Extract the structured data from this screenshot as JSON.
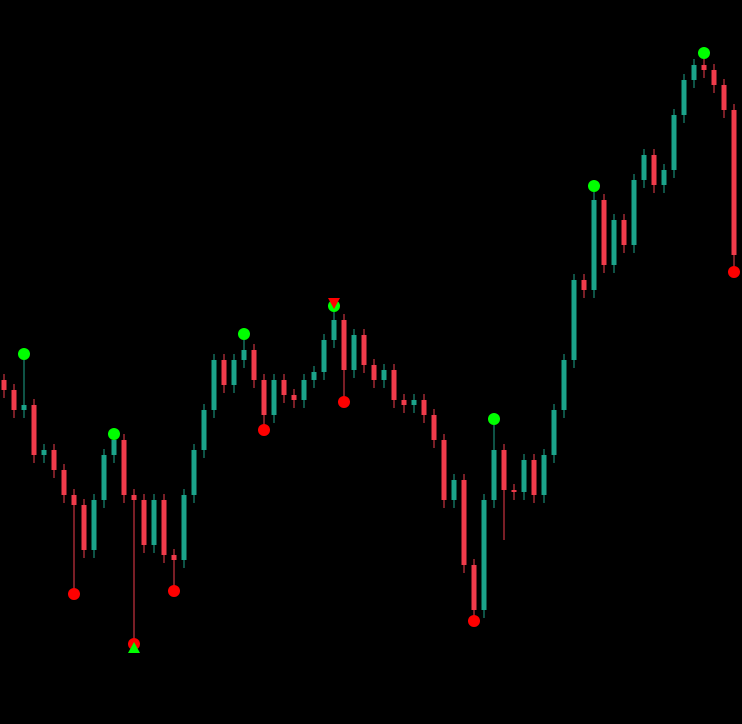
{
  "chart_data": {
    "type": "candlestick",
    "ylim": [
      0,
      724
    ],
    "up_color": "#1ba38a",
    "down_color": "#ef3b4b",
    "open": [
      344,
      334,
      314,
      319,
      269,
      274,
      254,
      229,
      219,
      174,
      224,
      269,
      284,
      229,
      224,
      179,
      224,
      169,
      164,
      229,
      274,
      314,
      364,
      339,
      364,
      374,
      344,
      309,
      344,
      329,
      324,
      344,
      352,
      384,
      404,
      354,
      389,
      359,
      344,
      354,
      324,
      319,
      324,
      309,
      284,
      224,
      244,
      159,
      114,
      224,
      274,
      234,
      232,
      264,
      229,
      269,
      314,
      364,
      444,
      434,
      524,
      459,
      504,
      479,
      544,
      569,
      539,
      554,
      609,
      644,
      659,
      654,
      639,
      614
    ],
    "high": [
      350,
      340,
      370,
      325,
      280,
      280,
      260,
      235,
      225,
      230,
      275,
      290,
      290,
      235,
      230,
      230,
      230,
      175,
      235,
      280,
      320,
      370,
      370,
      370,
      390,
      380,
      350,
      350,
      350,
      335,
      350,
      358,
      390,
      418,
      410,
      395,
      395,
      365,
      360,
      360,
      330,
      330,
      330,
      315,
      290,
      250,
      250,
      165,
      230,
      305,
      280,
      240,
      270,
      270,
      275,
      320,
      370,
      450,
      450,
      538,
      530,
      510,
      510,
      550,
      575,
      575,
      560,
      615,
      650,
      665,
      671,
      660,
      645,
      620
    ],
    "low": [
      326,
      306,
      306,
      261,
      261,
      246,
      221,
      130,
      166,
      166,
      216,
      261,
      221,
      80,
      171,
      171,
      161,
      133,
      156,
      221,
      266,
      306,
      331,
      331,
      356,
      336,
      294,
      301,
      321,
      316,
      316,
      336,
      344,
      376,
      322,
      346,
      351,
      336,
      336,
      316,
      311,
      311,
      301,
      276,
      216,
      216,
      151,
      103,
      106,
      216,
      184,
      224,
      224,
      221,
      221,
      261,
      306,
      356,
      426,
      426,
      451,
      451,
      471,
      471,
      536,
      531,
      531,
      546,
      601,
      636,
      646,
      631,
      606,
      452
    ],
    "close": [
      334,
      314,
      319,
      269,
      274,
      254,
      229,
      219,
      174,
      224,
      269,
      284,
      229,
      224,
      179,
      224,
      169,
      164,
      229,
      274,
      314,
      364,
      339,
      364,
      374,
      344,
      309,
      344,
      329,
      324,
      344,
      352,
      384,
      404,
      354,
      389,
      359,
      344,
      354,
      324,
      319,
      324,
      309,
      284,
      224,
      244,
      159,
      114,
      224,
      274,
      234,
      232,
      264,
      229,
      269,
      314,
      364,
      444,
      434,
      524,
      459,
      504,
      479,
      544,
      569,
      539,
      554,
      609,
      644,
      659,
      654,
      639,
      614,
      469
    ],
    "markers": [
      {
        "shape": "circle",
        "color": "#00ff00",
        "index": [
          2,
          11,
          24,
          33,
          49,
          59,
          70
        ],
        "values": [
          370,
          290,
          390,
          418,
          305,
          538,
          671
        ]
      },
      {
        "shape": "circle",
        "color": "#ff0000",
        "index": [
          7,
          13,
          17,
          26,
          34,
          47,
          73
        ],
        "values": [
          130,
          80,
          133,
          294,
          322,
          103,
          452
        ]
      },
      {
        "shape": "triangle-up",
        "color": "#00ff00",
        "index": [
          13
        ],
        "values": [
          76
        ]
      },
      {
        "shape": "triangle-down",
        "color": "#ff0000",
        "index": [
          33
        ],
        "values": [
          421
        ]
      }
    ]
  }
}
